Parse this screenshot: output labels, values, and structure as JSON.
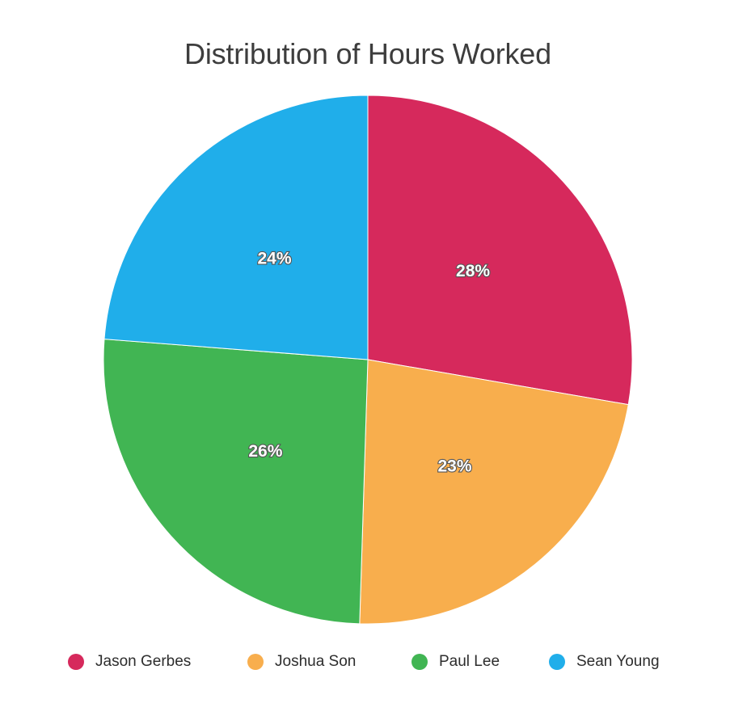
{
  "chart_data": {
    "type": "pie",
    "title": "Distribution of Hours Worked",
    "categories": [
      "Jason Gerbes",
      "Joshua Son",
      "Paul Lee",
      "Sean Young"
    ],
    "values": [
      28,
      23,
      26,
      24
    ],
    "labels": [
      "28%",
      "23%",
      "26%",
      "24%"
    ],
    "colors": [
      "#d6295c",
      "#f8ae4d",
      "#41b553",
      "#20aeea"
    ],
    "legend": "bottom"
  }
}
